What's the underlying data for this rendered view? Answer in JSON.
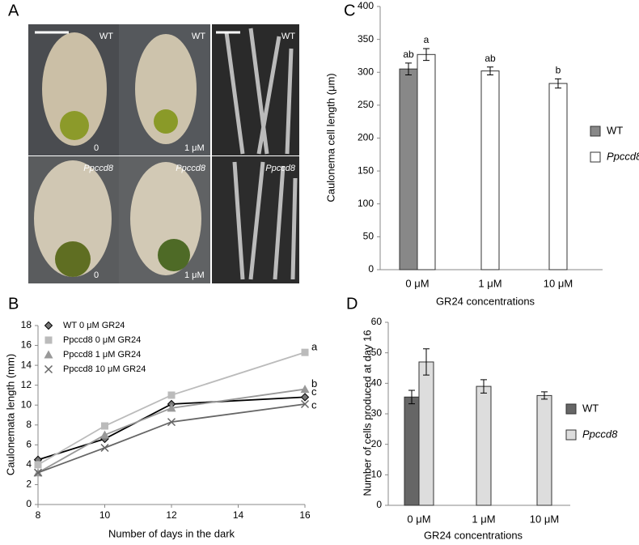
{
  "photo_panel": {
    "panel": "A",
    "cells": [
      {
        "label": "WT",
        "note": "0"
      },
      {
        "label": "WT",
        "note": "1 μM"
      },
      {
        "label": "WT"
      },
      {
        "label": "Ppccd8",
        "note": "0"
      },
      {
        "label": "Ppccd8",
        "note": "1 μM"
      },
      {
        "label": "Ppccd8"
      }
    ]
  },
  "chart_data": [
    {
      "type": "line",
      "panel": "B",
      "x": [
        8,
        10,
        12,
        16
      ],
      "xlim": [
        8,
        16
      ],
      "xticks": [
        8,
        10,
        12,
        14,
        16
      ],
      "ylim": [
        0,
        18
      ],
      "yticks": [
        0,
        2,
        4,
        6,
        8,
        10,
        12,
        14,
        16,
        18
      ],
      "xlabel": "Number of days in the dark",
      "ylabel": "Caulonemata length (mm)",
      "series": [
        {
          "name": "WT 0 μM GR24",
          "color": "#000000",
          "marker_color": "#777777",
          "marker": "diamond",
          "values": [
            4.5,
            6.6,
            10.1,
            10.8
          ],
          "annotation": "c"
        },
        {
          "name": "Ppccd8 0 μM GR24",
          "color": "#bbbbbb",
          "marker_color": "#bbbbbb",
          "marker": "square",
          "values": [
            4.0,
            7.9,
            11.0,
            15.3
          ],
          "annotation": "a"
        },
        {
          "name": "Ppccd8 1 μM GR24",
          "color": "#999999",
          "marker_color": "#999999",
          "marker": "triangle",
          "values": [
            3.2,
            7.0,
            9.7,
            11.6
          ],
          "annotation": "b"
        },
        {
          "name": "Ppccd8 10 μM GR24",
          "color": "#666666",
          "marker_color": "#666666",
          "marker": "x",
          "values": [
            3.2,
            5.7,
            8.3,
            10.1
          ],
          "annotation": "c"
        }
      ]
    },
    {
      "type": "bar",
      "panel": "C",
      "categories": [
        "0 μM",
        "1 μM",
        "10 μM"
      ],
      "ylim": [
        0,
        400
      ],
      "yticks": [
        0,
        50,
        100,
        150,
        200,
        250,
        300,
        350,
        400
      ],
      "xlabel": "GR24 concentrations",
      "ylabel": "Caulonema cell length (μm)",
      "series": [
        {
          "name": "WT",
          "color": "#888888",
          "values": [
            305,
            null,
            null
          ],
          "errors": [
            9,
            null,
            null
          ],
          "letters": [
            "ab",
            null,
            null
          ]
        },
        {
          "name": "Ppccd8",
          "color": "#ffffff",
          "values": [
            327,
            302,
            283
          ],
          "errors": [
            9,
            6,
            7
          ],
          "letters": [
            "a",
            "ab",
            "b"
          ]
        }
      ]
    },
    {
      "type": "bar",
      "panel": "D",
      "categories": [
        "0 μM",
        "1 μM",
        "10 μM"
      ],
      "ylim": [
        0,
        60
      ],
      "yticks": [
        0,
        10,
        20,
        30,
        40,
        50,
        60
      ],
      "xlabel": "GR24 concentrations",
      "ylabel": "Number of cells produced at day 16",
      "series": [
        {
          "name": "WT",
          "color": "#666666",
          "values": [
            35.5,
            null,
            null
          ],
          "errors": [
            2.2,
            null,
            null
          ]
        },
        {
          "name": "Ppccd8",
          "color": "#dddddd",
          "values": [
            47,
            39,
            36
          ],
          "errors": [
            4.3,
            2.2,
            1.2
          ]
        }
      ]
    }
  ]
}
